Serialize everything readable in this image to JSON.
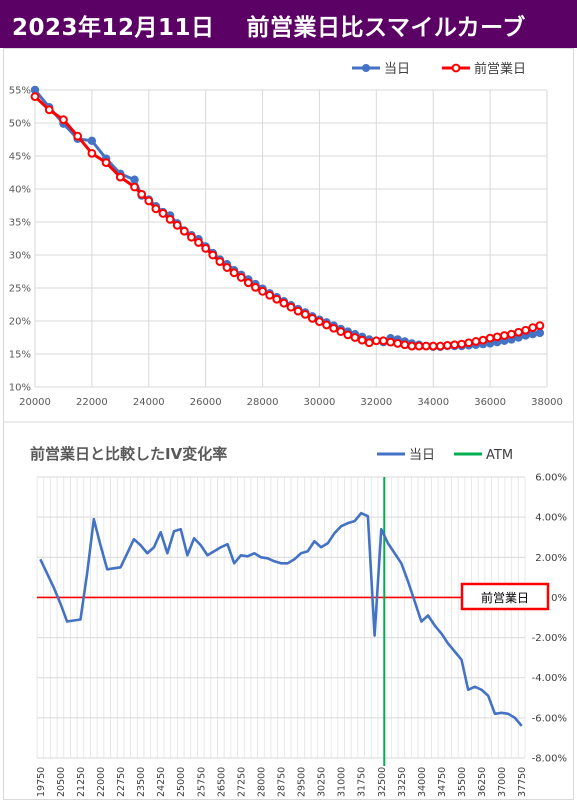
{
  "header": {
    "title": "2023年12月11日　 前営業日比スマイルカーブ"
  },
  "chart_data": [
    {
      "type": "line",
      "title": "",
      "legend_position": "top-right",
      "grid": true,
      "xlim": [
        20000,
        38000
      ],
      "ylim": [
        10,
        55
      ],
      "x_ticks": [
        "20000",
        "22000",
        "24000",
        "26000",
        "28000",
        "30000",
        "32000",
        "34000",
        "36000",
        "38000"
      ],
      "y_ticks": [
        "10%",
        "15%",
        "20%",
        "25%",
        "30%",
        "35%",
        "40%",
        "45%",
        "50%",
        "55%"
      ],
      "x": [
        20000,
        20500,
        21000,
        21500,
        22000,
        22500,
        23000,
        23500,
        23750,
        24000,
        24250,
        24500,
        24750,
        25000,
        25250,
        25500,
        25750,
        26000,
        26250,
        26500,
        26750,
        27000,
        27250,
        27500,
        27750,
        28000,
        28250,
        28500,
        28750,
        29000,
        29250,
        29500,
        29750,
        30000,
        30250,
        30500,
        30750,
        31000,
        31250,
        31500,
        31750,
        32000,
        32250,
        32500,
        32750,
        33000,
        33250,
        33500,
        33750,
        34000,
        34250,
        34500,
        34750,
        35000,
        35250,
        35500,
        35750,
        36000,
        36250,
        36500,
        36750,
        37000,
        37250,
        37500,
        37750
      ],
      "series": [
        {
          "name": "当日",
          "color": "#4472c4",
          "values": [
            55.0,
            52.4,
            49.9,
            47.6,
            47.3,
            44.6,
            42.3,
            41.4,
            39.0,
            38.4,
            37.4,
            36.5,
            36.0,
            34.8,
            33.7,
            33.0,
            32.4,
            31.3,
            30.3,
            29.3,
            28.6,
            27.7,
            27.0,
            26.3,
            25.6,
            24.9,
            24.2,
            23.6,
            23.0,
            22.4,
            21.8,
            21.3,
            20.7,
            20.2,
            19.8,
            19.3,
            18.8,
            18.4,
            18.0,
            17.6,
            17.2,
            17.0,
            16.8,
            17.4,
            17.2,
            16.9,
            16.6,
            16.4,
            16.2,
            16.1,
            16.1,
            16.2,
            16.2,
            16.2,
            16.3,
            16.4,
            16.5,
            16.6,
            16.8,
            17.0,
            17.2,
            17.5,
            17.8,
            18.0,
            18.2
          ]
        },
        {
          "name": "前営業日",
          "color": "#ff0000",
          "values": [
            54.0,
            52.0,
            50.5,
            48.0,
            45.4,
            44.0,
            41.8,
            40.3,
            39.2,
            38.2,
            37.0,
            36.3,
            35.4,
            34.5,
            33.6,
            32.7,
            31.9,
            31.0,
            30.0,
            29.0,
            28.1,
            27.3,
            26.6,
            25.8,
            25.1,
            24.5,
            23.9,
            23.3,
            22.7,
            22.1,
            21.5,
            21.0,
            20.4,
            19.9,
            19.4,
            18.9,
            18.4,
            17.9,
            17.5,
            17.1,
            16.7,
            17.0,
            17.0,
            16.8,
            16.6,
            16.4,
            16.2,
            16.2,
            16.2,
            16.2,
            16.2,
            16.3,
            16.4,
            16.5,
            16.7,
            16.9,
            17.1,
            17.4,
            17.6,
            17.8,
            18.0,
            18.3,
            18.6,
            19.0,
            19.3
          ]
        }
      ]
    },
    {
      "type": "line",
      "title": "前営業日と比較したIV変化率",
      "legend_position": "top-right",
      "grid": true,
      "ylim": [
        -8,
        6
      ],
      "y_ticks": [
        "6.00%",
        "4.00%",
        "2.00%",
        "0%",
        "-2.00%",
        "-4.00%",
        "-6.00%",
        "-8.00%"
      ],
      "categories": [
        "19750",
        "20000",
        "20250",
        "20500",
        "20750",
        "21000",
        "21250",
        "21500",
        "21750",
        "22000",
        "22250",
        "22500",
        "22750",
        "23000",
        "23250",
        "23500",
        "23750",
        "24000",
        "24250",
        "24500",
        "24750",
        "25000",
        "25250",
        "25500",
        "25750",
        "26000",
        "26250",
        "26500",
        "26750",
        "27000",
        "27250",
        "27500",
        "27750",
        "28000",
        "28250",
        "28500",
        "28750",
        "29000",
        "29250",
        "29500",
        "29750",
        "30000",
        "30250",
        "30500",
        "30750",
        "31000",
        "31250",
        "31500",
        "31750",
        "32000",
        "32250",
        "32500",
        "32750",
        "33000",
        "33250",
        "33500",
        "33750",
        "34000",
        "34250",
        "34500",
        "34750",
        "35000",
        "35250",
        "35500",
        "35750",
        "36000",
        "36250",
        "36500",
        "36750",
        "37000",
        "37250",
        "37500",
        "37750"
      ],
      "label_every": 3,
      "reference_line": {
        "label": "前営業日",
        "value": 0,
        "color": "#ff0000"
      },
      "atm": {
        "name": "ATM",
        "category": "32750",
        "color": "#00b050"
      },
      "series": [
        {
          "name": "当日",
          "color": "#4472c4",
          "values": [
            1.9,
            1.2,
            0.5,
            -0.3,
            -1.2,
            -1.15,
            -1.1,
            1.2,
            3.9,
            2.6,
            1.4,
            1.45,
            1.5,
            2.2,
            2.9,
            2.6,
            2.2,
            2.5,
            3.25,
            2.2,
            3.3,
            3.4,
            2.1,
            2.95,
            2.6,
            2.1,
            2.3,
            2.5,
            2.65,
            1.7,
            2.1,
            2.05,
            2.2,
            2.0,
            1.95,
            1.8,
            1.7,
            1.7,
            1.9,
            2.2,
            2.3,
            2.8,
            2.5,
            2.7,
            3.2,
            3.55,
            3.7,
            3.8,
            4.2,
            4.05,
            -1.9,
            3.4,
            2.7,
            2.2,
            1.7,
            0.8,
            -0.2,
            -1.2,
            -0.9,
            -1.4,
            -1.8,
            -2.3,
            -2.7,
            -3.1,
            -4.6,
            -4.45,
            -4.6,
            -4.9,
            -5.8,
            -5.75,
            -5.8,
            -6.0,
            -6.4
          ]
        }
      ]
    }
  ]
}
